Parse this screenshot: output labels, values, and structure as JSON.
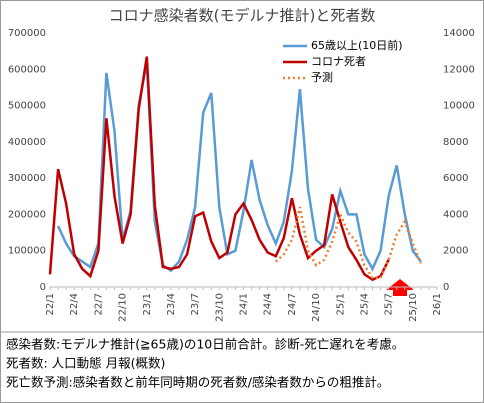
{
  "chart_data": {
    "type": "line",
    "title": "コロナ感染者数(モデルナ推計)と死者数",
    "categories": [
      "22/1",
      null,
      null,
      "22/4",
      null,
      null,
      "22/7",
      null,
      null,
      "22/10",
      null,
      null,
      "23/1",
      null,
      null,
      "23/4",
      null,
      null,
      "23/7",
      null,
      null,
      "23/10",
      null,
      null,
      "24/1",
      null,
      null,
      "24/4",
      null,
      null,
      "24/7",
      null,
      null,
      "24/10",
      null,
      null,
      "25/1",
      null,
      null,
      "25/4",
      null,
      null,
      "25/7",
      null,
      null,
      "25/10",
      null,
      null,
      "26/1"
    ],
    "series": [
      {
        "name": "65歳以上(10日前)",
        "color": "#5b9bd5",
        "axis": "y",
        "values": [
          null,
          168000,
          120000,
          85000,
          70000,
          55000,
          120000,
          590000,
          430000,
          130000,
          210000,
          500000,
          620000,
          180000,
          60000,
          45000,
          70000,
          130000,
          220000,
          480000,
          535000,
          220000,
          90000,
          100000,
          210000,
          350000,
          240000,
          170000,
          120000,
          180000,
          320000,
          545000,
          270000,
          130000,
          110000,
          160000,
          265000,
          200000,
          200000,
          90000,
          50000,
          100000,
          250000,
          335000,
          200000,
          100000,
          70000,
          null,
          null
        ]
      },
      {
        "name": "コロナ死者",
        "color": "#c00000",
        "axis": "y2",
        "values": [
          700,
          6500,
          4600,
          1800,
          1000,
          600,
          2000,
          9300,
          5000,
          2400,
          4000,
          9800,
          12700,
          4500,
          1100,
          1000,
          1100,
          1800,
          3900,
          4100,
          2500,
          1600,
          1900,
          4000,
          4600,
          3700,
          2600,
          1900,
          1700,
          2700,
          4900,
          2900,
          1600,
          2000,
          2300,
          5100,
          3600,
          2200,
          1500,
          700,
          400,
          600,
          1500,
          null,
          null,
          null,
          null,
          null,
          null
        ]
      },
      {
        "name": "予測",
        "color": "#ed7d31",
        "axis": "y2",
        "dashed": true,
        "values": [
          null,
          null,
          null,
          null,
          null,
          null,
          null,
          null,
          null,
          null,
          null,
          null,
          null,
          null,
          null,
          null,
          null,
          null,
          null,
          null,
          null,
          null,
          null,
          null,
          null,
          null,
          null,
          null,
          1400,
          1800,
          2600,
          4400,
          2000,
          1200,
          1500,
          2500,
          4000,
          3000,
          2500,
          1200,
          500,
          500,
          1500,
          2900,
          3600,
          2400,
          1300,
          null,
          null
        ]
      }
    ],
    "ylim": [
      0,
      700000
    ],
    "yticks": [
      0,
      100000,
      200000,
      300000,
      400000,
      500000,
      600000,
      700000
    ],
    "y2lim": [
      0,
      14000
    ],
    "y2ticks": [
      0,
      2000,
      4000,
      6000,
      8000,
      10000,
      12000,
      14000
    ],
    "grid": false,
    "legend": "upper right",
    "notes": [
      "感染者数:モデルナ推計(≧65歳)の10日前合計。診断-死亡遅れを考慮。",
      "死者数: 人口動態 月報(概数)",
      "死亡数予測:感染者数と前年同時期の死者数/感染者数からの粗推計。"
    ]
  }
}
